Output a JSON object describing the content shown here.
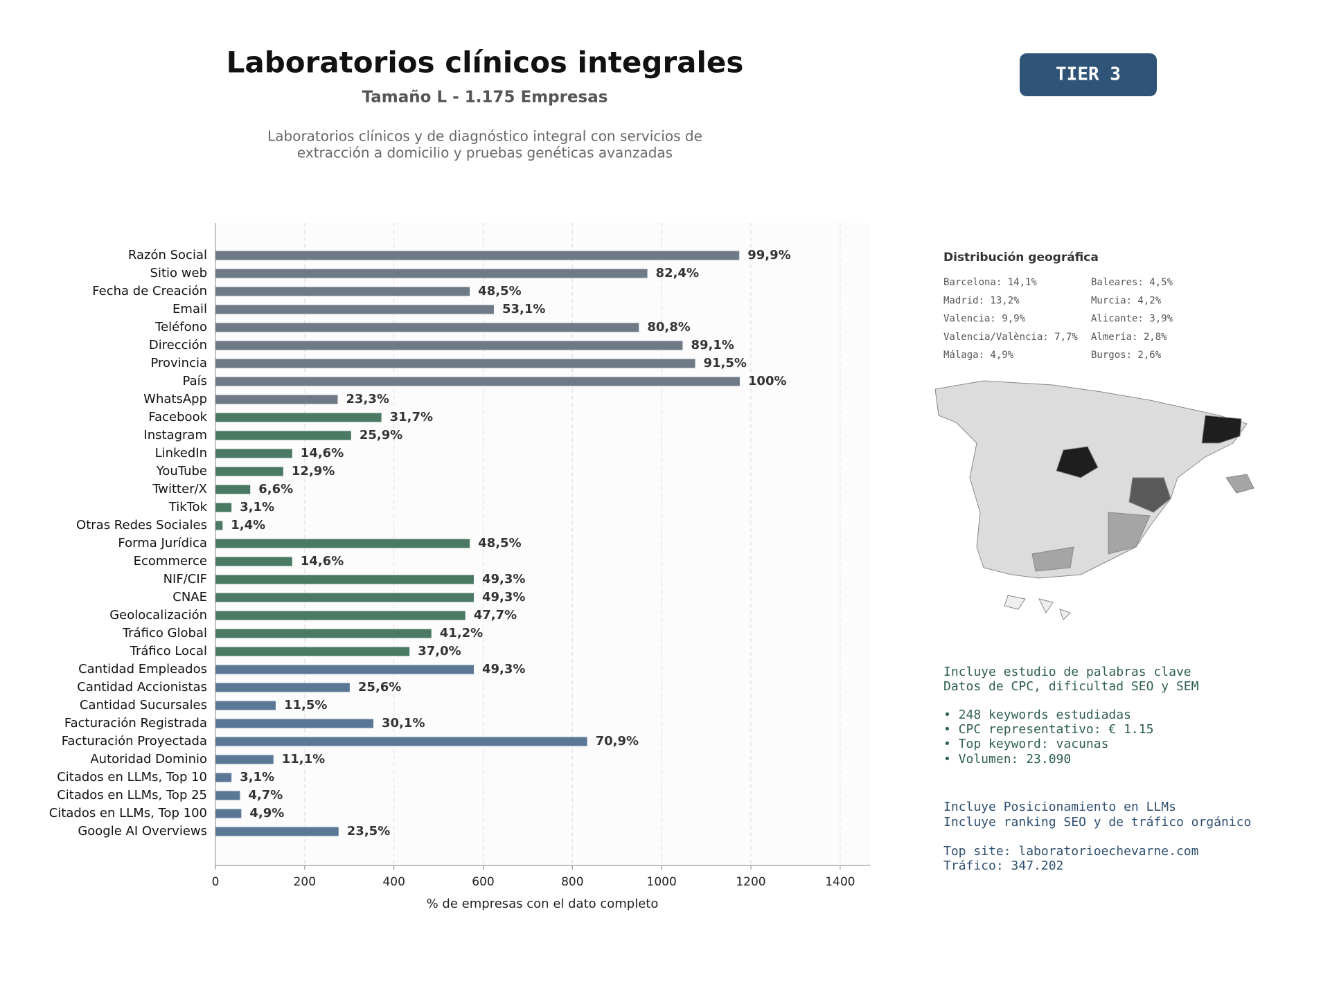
{
  "header": {
    "title": "Laboratorios clínicos integrales",
    "subtitle": "Tamaño L - 1.175 Empresas",
    "description": [
      "Laboratorios clínicos y de diagnóstico integral con servicios de",
      "extracción a domicilio y pruebas genéticas avanzadas"
    ],
    "badge": "TIER 3"
  },
  "chart_data": {
    "type": "bar",
    "orientation": "horizontal",
    "xlabel": "% de empresas con el dato completo",
    "categories": [
      "Razón Social",
      "Sitio web",
      "Fecha de Creación",
      "Email",
      "Teléfono",
      "Dirección",
      "Provincia",
      "País",
      "WhatsApp",
      "Facebook",
      "Instagram",
      "LinkedIn",
      "YouTube",
      "Twitter/X",
      "TikTok",
      "Otras Redes Sociales",
      "Forma Jurídica",
      "Ecommerce",
      "NIF/CIF",
      "CNAE",
      "Geolocalización",
      "Tráfico Global",
      "Tráfico Local",
      "Cantidad Empleados",
      "Cantidad Accionistas",
      "Cantidad Sucursales",
      "Facturación Registrada",
      "Facturación Proyectada",
      "Autoridad Dominio",
      "Citados en LLMs, Top 10",
      "Citados en LLMs, Top 25",
      "Citados en LLMs, Top 100",
      "Google AI Overviews"
    ],
    "values": [
      1174,
      968,
      570,
      624,
      949,
      1047,
      1075,
      1175,
      274,
      372,
      304,
      172,
      152,
      78,
      36,
      16,
      570,
      172,
      579,
      579,
      560,
      484,
      435,
      579,
      301,
      135,
      354,
      833,
      130,
      36,
      55,
      58,
      276
    ],
    "value_labels": [
      "99,9%",
      "82,4%",
      "48,5%",
      "53,1%",
      "80,8%",
      "89,1%",
      "91,5%",
      "100%",
      "23,3%",
      "31,7%",
      "25,9%",
      "14,6%",
      "12,9%",
      "6,6%",
      "3,1%",
      "1,4%",
      "48,5%",
      "14,6%",
      "49,3%",
      "49,3%",
      "47,7%",
      "41,2%",
      "37,0%",
      "49,3%",
      "25,6%",
      "11,5%",
      "30,1%",
      "70,9%",
      "11,1%",
      "3,1%",
      "4,7%",
      "4,9%",
      "23,5%"
    ],
    "colors": [
      "#6e7a86",
      "#6e7a86",
      "#6e7a86",
      "#6e7a86",
      "#6e7a86",
      "#6e7a86",
      "#6e7a86",
      "#6e7a86",
      "#6e7a86",
      "#4a7a64",
      "#4a7a64",
      "#4a7a64",
      "#4a7a64",
      "#4a7a64",
      "#4a7a64",
      "#4a7a64",
      "#4a7a64",
      "#4a7a64",
      "#4a7a64",
      "#4a7a64",
      "#4a7a64",
      "#4a7a64",
      "#4a7a64",
      "#5a7896",
      "#5a7896",
      "#5a7896",
      "#5a7896",
      "#5a7896",
      "#5a7896",
      "#5a7896",
      "#5a7896",
      "#5a7896",
      "#5a7896"
    ],
    "xlim": [
      0,
      1467
    ],
    "xticks": [
      0,
      200,
      400,
      600,
      800,
      1000,
      1200,
      1400
    ],
    "grid": true
  },
  "geo": {
    "title": "Distribución geográfica",
    "items": [
      "Barcelona: 14,1%",
      "Madrid: 13,2%",
      "Valencia: 9,9%",
      "Valencia/València: 7,7%",
      "Málaga: 4,9%",
      "Baleares: 4,5%",
      "Murcia: 4,2%",
      "Alicante: 3,9%",
      "Almería: 2,8%",
      "Burgos: 2,6%"
    ]
  },
  "keywords": [
    "Incluye estudio de palabras clave",
    "Datos de CPC, dificultad SEO y SEM",
    "• 248 keywords estudiadas",
    "• CPC representativo: € 1.15",
    "• Top keyword: vacunas",
    "• Volumen: 23.090"
  ],
  "llm": [
    "Incluye Posicionamiento en LLMs",
    "Incluye ranking SEO y de tráfico orgánico",
    "Top site: laboratorioechevarne.com",
    "Tráfico: 347.202"
  ]
}
